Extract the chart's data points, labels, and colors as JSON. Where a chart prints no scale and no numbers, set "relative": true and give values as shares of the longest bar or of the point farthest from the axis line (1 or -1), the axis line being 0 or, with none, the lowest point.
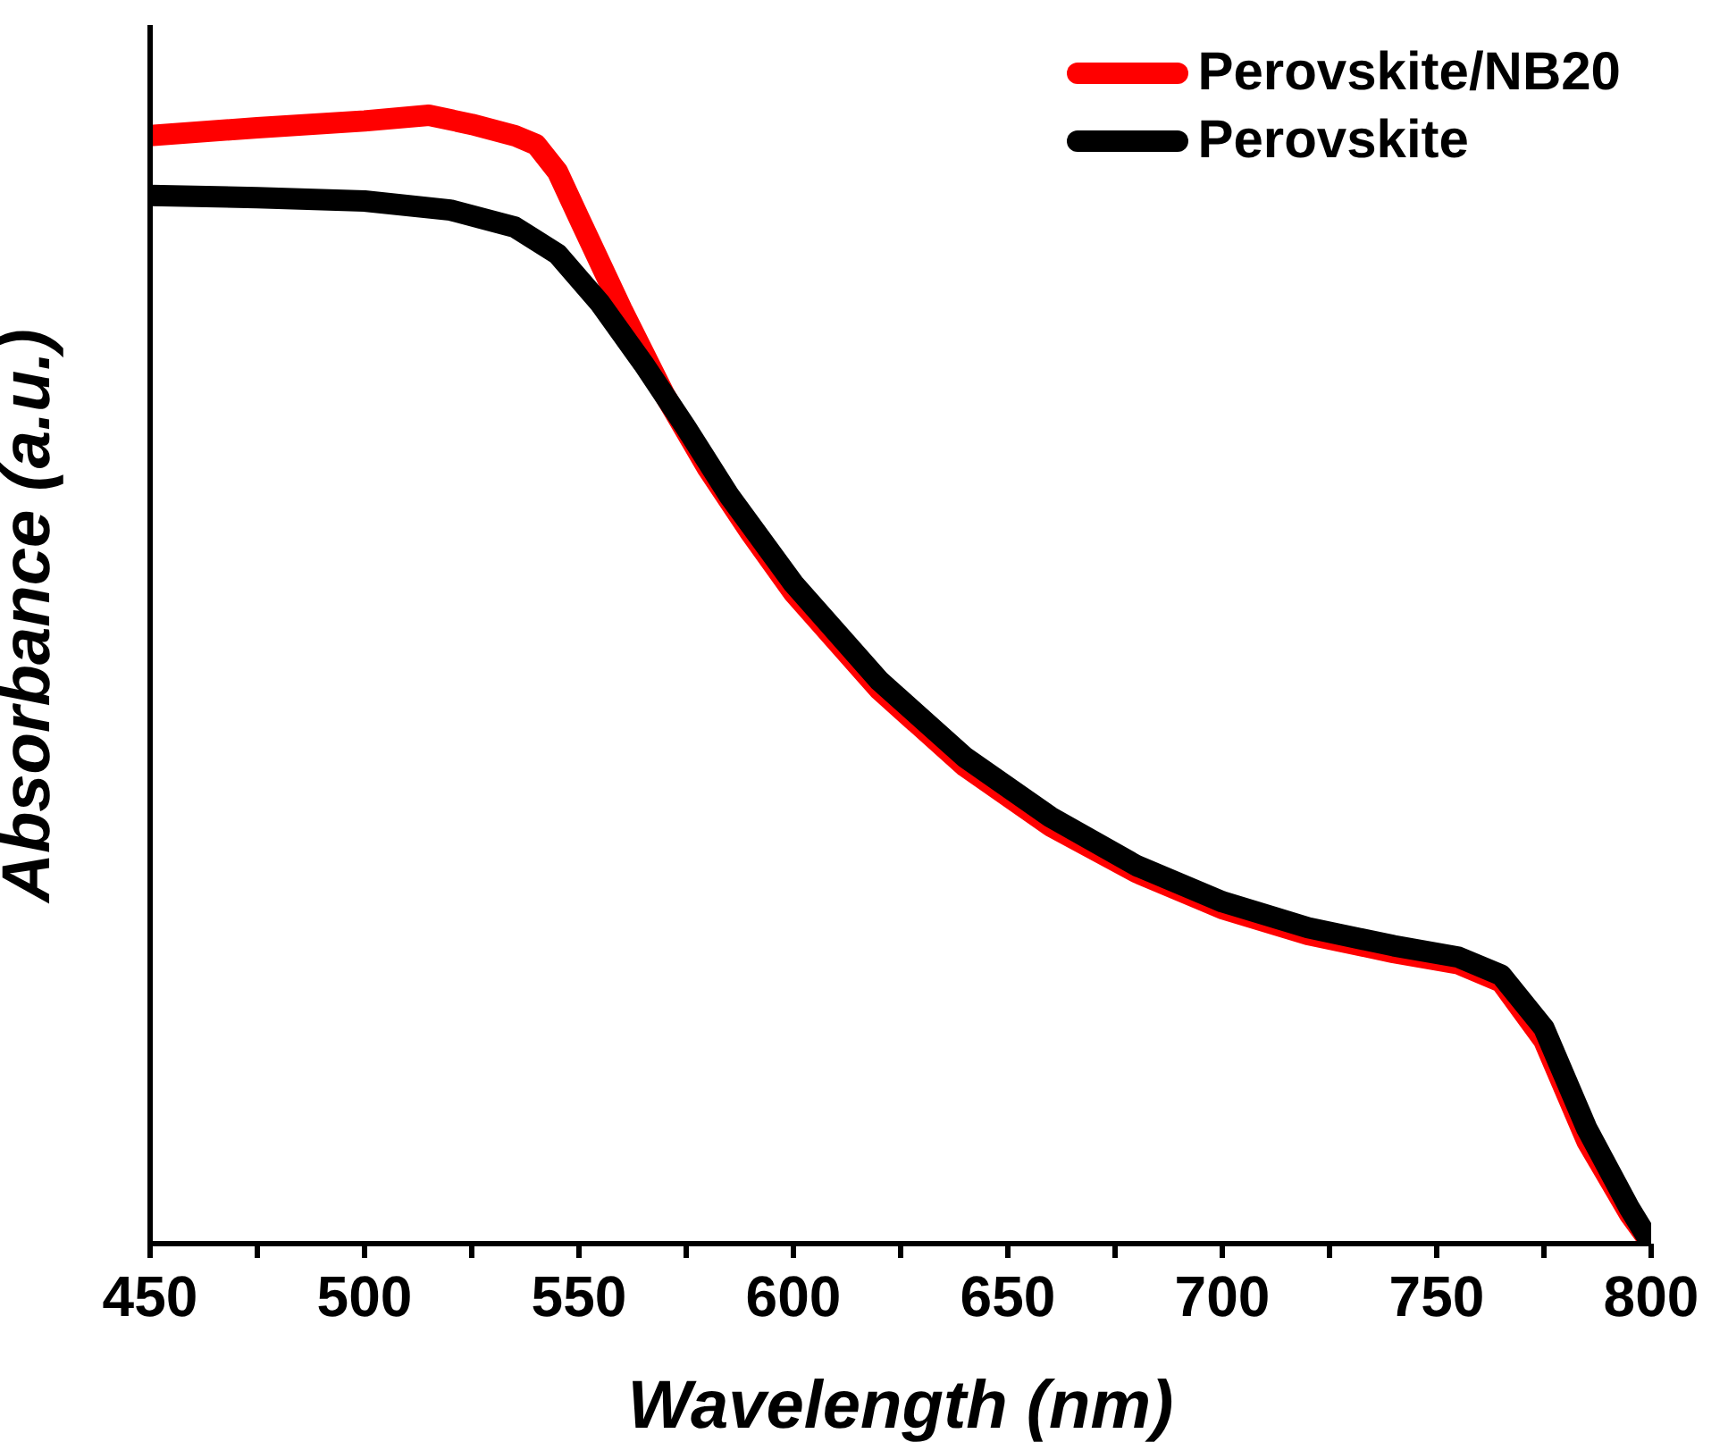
{
  "chart_data": {
    "type": "line",
    "relative": true,
    "xlabel": "Wavelength (nm)",
    "ylabel": "Absorbance (a.u.)",
    "xlim": [
      450,
      800
    ],
    "xticks": [
      450,
      {
        "value": 475,
        "label": null
      },
      500,
      {
        "value": 525,
        "label": null
      },
      550,
      {
        "value": 575,
        "label": null
      },
      600,
      {
        "value": 625,
        "label": null
      },
      650,
      {
        "value": 675,
        "label": null
      },
      700,
      {
        "value": 725,
        "label": null
      },
      750,
      {
        "value": 775,
        "label": null
      },
      800
    ],
    "legend": "top right",
    "grid": false,
    "marker": "none",
    "line_style": "solid",
    "series": [
      {
        "name": "Perovskite/NB20",
        "color": "#ff0000",
        "x": [
          450,
          475,
          500,
          515,
          525,
          535,
          540,
          545,
          550,
          560,
          570,
          580,
          590,
          600,
          620,
          640,
          660,
          680,
          700,
          720,
          740,
          755,
          765,
          775,
          785,
          795,
          800
        ],
        "values": [
          0.982,
          0.989,
          0.995,
          1,
          0.992,
          0.982,
          0.974,
          0.95,
          0.909,
          0.828,
          0.752,
          0.687,
          0.63,
          0.577,
          0.491,
          0.423,
          0.37,
          0.329,
          0.297,
          0.274,
          0.258,
          0.248,
          0.232,
          0.18,
          0.091,
          0.026,
          0
        ]
      },
      {
        "name": "Perovskite",
        "color": "#000000",
        "x": [
          450,
          475,
          500,
          520,
          535,
          545,
          555,
          565,
          575,
          585,
          600,
          620,
          640,
          660,
          680,
          700,
          720,
          740,
          755,
          765,
          775,
          785,
          795,
          800
        ],
        "values": [
          0.929,
          0.927,
          0.924,
          0.916,
          0.901,
          0.877,
          0.833,
          0.78,
          0.723,
          0.663,
          0.585,
          0.499,
          0.431,
          0.378,
          0.335,
          0.303,
          0.28,
          0.264,
          0.254,
          0.238,
          0.191,
          0.102,
          0.031,
          0
        ]
      }
    ]
  }
}
